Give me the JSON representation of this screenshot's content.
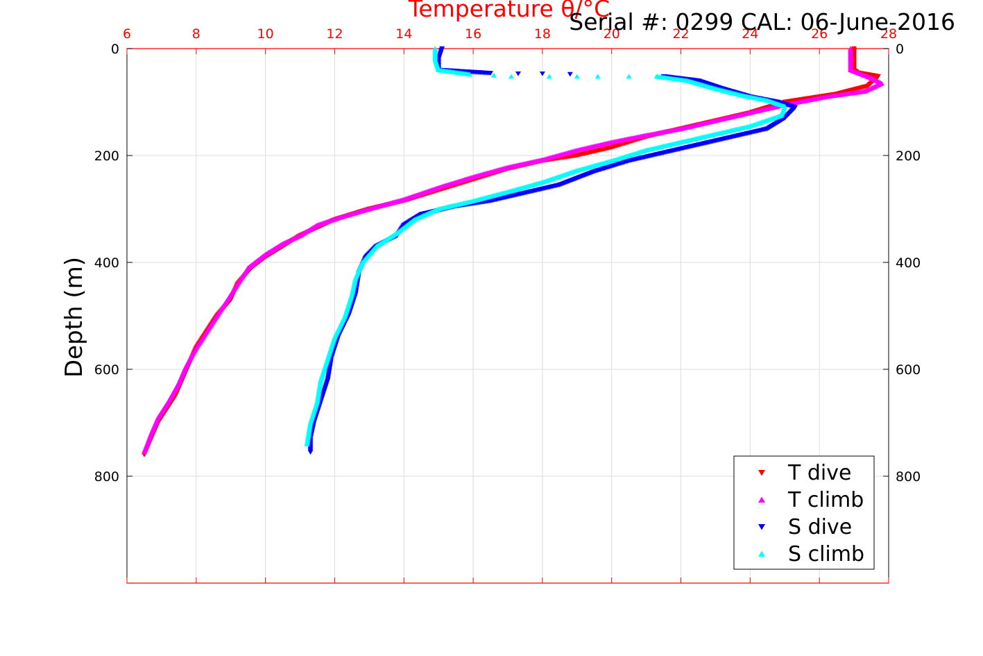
{
  "chart_data": {
    "type": "scatter",
    "title": "Temperature θ/°C",
    "subtitle": "Serial #: 0299 CAL: 06-June-2016",
    "xlabel": "Temperature θ/°C",
    "ylabel": "Depth (m)",
    "xlim": [
      6,
      28
    ],
    "ylim": [
      0,
      1000
    ],
    "y_reversed": true,
    "xticks": [
      6,
      8,
      10,
      12,
      14,
      16,
      18,
      20,
      22,
      24,
      26,
      28
    ],
    "yticks": [
      0,
      200,
      400,
      600,
      800
    ],
    "grid": true,
    "legend_position": "bottom-right",
    "colors": {
      "axis_top": "#ff0000",
      "axis_frame": "#000000",
      "grid": "#dcdcdc"
    },
    "series": [
      {
        "name": "T dive",
        "color": "#ff0000",
        "marker": "triangle-down",
        "points": [
          [
            27.0,
            0
          ],
          [
            27.0,
            20
          ],
          [
            27.0,
            40
          ],
          [
            27.1,
            45
          ],
          [
            27.7,
            52
          ],
          [
            27.4,
            70
          ],
          [
            26.5,
            85
          ],
          [
            25.0,
            100
          ],
          [
            24.0,
            120
          ],
          [
            23.0,
            135
          ],
          [
            22.0,
            150
          ],
          [
            21.0,
            165
          ],
          [
            20.0,
            185
          ],
          [
            19.0,
            200
          ],
          [
            18.0,
            210
          ],
          [
            17.0,
            225
          ],
          [
            16.0,
            245
          ],
          [
            15.0,
            265
          ],
          [
            14.0,
            285
          ],
          [
            13.0,
            300
          ],
          [
            12.0,
            320
          ],
          [
            11.0,
            350
          ],
          [
            10.5,
            370
          ],
          [
            10.0,
            390
          ],
          [
            9.6,
            410
          ],
          [
            9.2,
            440
          ],
          [
            9.0,
            470
          ],
          [
            8.6,
            500
          ],
          [
            8.3,
            530
          ],
          [
            8.0,
            560
          ],
          [
            7.8,
            590
          ],
          [
            7.6,
            620
          ],
          [
            7.4,
            650
          ],
          [
            7.1,
            680
          ],
          [
            6.9,
            700
          ],
          [
            6.7,
            730
          ],
          [
            6.5,
            760
          ]
        ]
      },
      {
        "name": "T climb",
        "color": "#ff00ff",
        "marker": "triangle-up",
        "points": [
          [
            26.9,
            0
          ],
          [
            26.9,
            20
          ],
          [
            26.9,
            40
          ],
          [
            27.5,
            55
          ],
          [
            27.8,
            65
          ],
          [
            27.3,
            80
          ],
          [
            26.2,
            90
          ],
          [
            25.0,
            105
          ],
          [
            24.0,
            120
          ],
          [
            23.0,
            135
          ],
          [
            22.0,
            150
          ],
          [
            21.0,
            162
          ],
          [
            20.0,
            175
          ],
          [
            19.0,
            190
          ],
          [
            18.0,
            208
          ],
          [
            17.0,
            222
          ],
          [
            16.0,
            240
          ],
          [
            15.0,
            260
          ],
          [
            14.0,
            282
          ],
          [
            13.0,
            300
          ],
          [
            12.2,
            315
          ],
          [
            11.5,
            330
          ],
          [
            11.0,
            350
          ],
          [
            10.5,
            365
          ],
          [
            10.0,
            385
          ],
          [
            9.5,
            410
          ],
          [
            9.1,
            450
          ],
          [
            8.7,
            490
          ],
          [
            8.4,
            520
          ],
          [
            8.0,
            560
          ],
          [
            7.7,
            595
          ],
          [
            7.5,
            625
          ],
          [
            7.2,
            660
          ],
          [
            6.9,
            690
          ],
          [
            6.7,
            720
          ],
          [
            6.5,
            755
          ]
        ]
      },
      {
        "name": "S dive",
        "color": "#0000ff",
        "marker": "triangle-down",
        "points": [
          [
            15.1,
            0
          ],
          [
            15.0,
            20
          ],
          [
            15.0,
            40
          ],
          [
            16.5,
            46
          ],
          [
            17.3,
            47
          ],
          [
            18.0,
            47
          ],
          [
            18.8,
            48
          ],
          [
            21.5,
            52
          ],
          [
            22.5,
            60
          ],
          [
            23.2,
            75
          ],
          [
            24.0,
            90
          ],
          [
            24.8,
            100
          ],
          [
            25.3,
            110
          ],
          [
            25.0,
            130
          ],
          [
            24.5,
            150
          ],
          [
            23.5,
            165
          ],
          [
            22.5,
            180
          ],
          [
            21.5,
            195
          ],
          [
            20.5,
            210
          ],
          [
            19.5,
            230
          ],
          [
            18.5,
            255
          ],
          [
            17.5,
            270
          ],
          [
            16.5,
            285
          ],
          [
            15.5,
            295
          ],
          [
            14.5,
            310
          ],
          [
            14.0,
            330
          ],
          [
            13.8,
            350
          ],
          [
            13.2,
            370
          ],
          [
            12.9,
            390
          ],
          [
            12.7,
            420
          ],
          [
            12.6,
            460
          ],
          [
            12.4,
            500
          ],
          [
            12.1,
            540
          ],
          [
            11.9,
            580
          ],
          [
            11.8,
            620
          ],
          [
            11.6,
            660
          ],
          [
            11.4,
            700
          ],
          [
            11.3,
            730
          ],
          [
            11.3,
            755
          ]
        ]
      },
      {
        "name": "S climb",
        "color": "#00ffff",
        "marker": "triangle-up",
        "points": [
          [
            14.9,
            0
          ],
          [
            14.9,
            20
          ],
          [
            15.0,
            40
          ],
          [
            15.9,
            48
          ],
          [
            16.6,
            50
          ],
          [
            17.1,
            52
          ],
          [
            18.2,
            52
          ],
          [
            19.0,
            52
          ],
          [
            19.6,
            52
          ],
          [
            20.5,
            52
          ],
          [
            21.3,
            52
          ],
          [
            22.2,
            60
          ],
          [
            23.0,
            75
          ],
          [
            23.8,
            88
          ],
          [
            24.5,
            97
          ],
          [
            25.0,
            108
          ],
          [
            24.9,
            125
          ],
          [
            24.0,
            145
          ],
          [
            23.0,
            160
          ],
          [
            22.0,
            175
          ],
          [
            21.0,
            190
          ],
          [
            20.0,
            210
          ],
          [
            19.0,
            228
          ],
          [
            18.0,
            250
          ],
          [
            17.0,
            268
          ],
          [
            16.0,
            285
          ],
          [
            15.0,
            300
          ],
          [
            14.3,
            320
          ],
          [
            13.8,
            345
          ],
          [
            13.2,
            370
          ],
          [
            12.8,
            400
          ],
          [
            12.6,
            430
          ],
          [
            12.5,
            460
          ],
          [
            12.3,
            500
          ],
          [
            12.0,
            540
          ],
          [
            11.8,
            580
          ],
          [
            11.6,
            620
          ],
          [
            11.5,
            660
          ],
          [
            11.3,
            700
          ],
          [
            11.2,
            740
          ]
        ]
      }
    ]
  }
}
